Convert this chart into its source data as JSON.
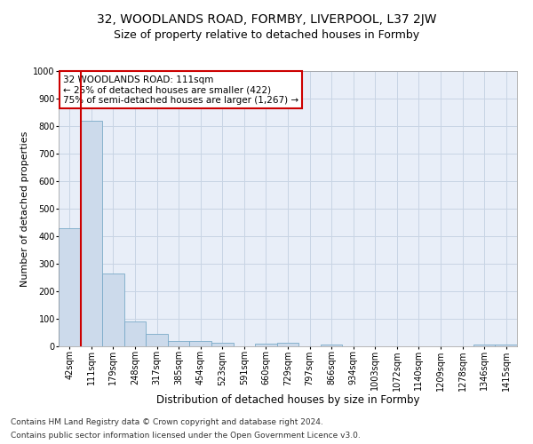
{
  "title1": "32, WOODLANDS ROAD, FORMBY, LIVERPOOL, L37 2JW",
  "title2": "Size of property relative to detached houses in Formby",
  "xlabel": "Distribution of detached houses by size in Formby",
  "ylabel": "Number of detached properties",
  "categories": [
    "42sqm",
    "111sqm",
    "179sqm",
    "248sqm",
    "317sqm",
    "385sqm",
    "454sqm",
    "523sqm",
    "591sqm",
    "660sqm",
    "729sqm",
    "797sqm",
    "866sqm",
    "934sqm",
    "1003sqm",
    "1072sqm",
    "1140sqm",
    "1209sqm",
    "1278sqm",
    "1346sqm",
    "1415sqm"
  ],
  "values": [
    430,
    820,
    265,
    90,
    45,
    20,
    18,
    12,
    0,
    10,
    12,
    0,
    5,
    0,
    0,
    0,
    0,
    0,
    0,
    8,
    5
  ],
  "bar_color": "#ccdaeb",
  "bar_edge_color": "#7aaac8",
  "highlight_bar_index": 1,
  "highlight_line_color": "#cc0000",
  "annotation_text": "32 WOODLANDS ROAD: 111sqm\n← 25% of detached houses are smaller (422)\n75% of semi-detached houses are larger (1,267) →",
  "annotation_box_color": "#ffffff",
  "annotation_box_edge_color": "#cc0000",
  "ylim": [
    0,
    1000
  ],
  "yticks": [
    0,
    100,
    200,
    300,
    400,
    500,
    600,
    700,
    800,
    900,
    1000
  ],
  "grid_color": "#c8d4e4",
  "bg_color": "#e8eef8",
  "footer1": "Contains HM Land Registry data © Crown copyright and database right 2024.",
  "footer2": "Contains public sector information licensed under the Open Government Licence v3.0.",
  "title1_fontsize": 10,
  "title2_fontsize": 9,
  "xlabel_fontsize": 8.5,
  "ylabel_fontsize": 8,
  "tick_fontsize": 7,
  "annotation_fontsize": 7.5,
  "footer_fontsize": 6.5
}
